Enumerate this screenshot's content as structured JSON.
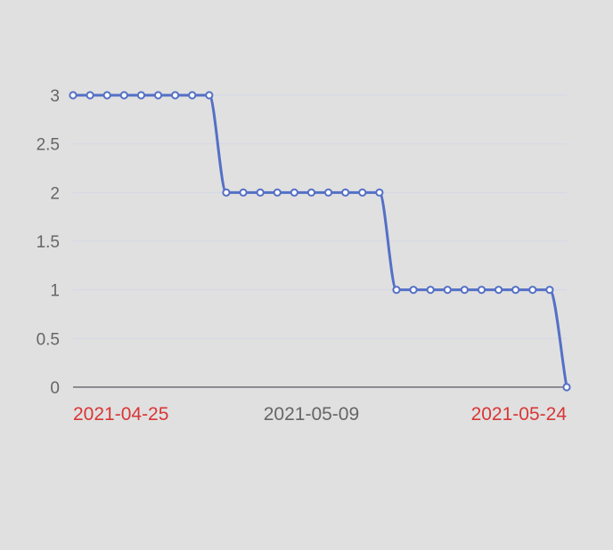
{
  "colors": {
    "background": "#e0e0e0",
    "series_line": "#5470c6",
    "marker_fill": "#ffffff",
    "grid": "#d4d7e6",
    "axis": "#6e7079",
    "ytick_text": "#666666",
    "xtick_text_default": "#666666",
    "xtick_text_highlight": "#d93636"
  },
  "chart_data": {
    "type": "line",
    "smooth": true,
    "title": "",
    "xlabel": "",
    "ylabel": "",
    "ylim": [
      0,
      3
    ],
    "yticks": [
      0,
      0.5,
      1,
      1.5,
      2,
      2.5,
      3
    ],
    "ytick_labels": [
      "0",
      "0.5",
      "1",
      "1.5",
      "2",
      "2.5",
      "3"
    ],
    "grid": "horizontal",
    "legend": "none",
    "xlim": [
      "2021-04-25",
      "2021-05-24"
    ],
    "xtick_labels": [
      {
        "date": "2021-04-25",
        "label": "2021-04-25",
        "highlight": true
      },
      {
        "date": "2021-05-09",
        "label": "2021-05-09",
        "highlight": false
      },
      {
        "date": "2021-05-24",
        "label": "2021-05-24",
        "highlight": true
      }
    ],
    "series": [
      {
        "points": [
          [
            "2021-04-25",
            3
          ],
          [
            "2021-04-26",
            3
          ],
          [
            "2021-04-27",
            3
          ],
          [
            "2021-04-28",
            3
          ],
          [
            "2021-04-29",
            3
          ],
          [
            "2021-04-30",
            3
          ],
          [
            "2021-05-01",
            3
          ],
          [
            "2021-05-02",
            3
          ],
          [
            "2021-05-03",
            3
          ],
          [
            "2021-05-04",
            2
          ],
          [
            "2021-05-05",
            2
          ],
          [
            "2021-05-06",
            2
          ],
          [
            "2021-05-07",
            2
          ],
          [
            "2021-05-08",
            2
          ],
          [
            "2021-05-09",
            2
          ],
          [
            "2021-05-10",
            2
          ],
          [
            "2021-05-11",
            2
          ],
          [
            "2021-05-12",
            2
          ],
          [
            "2021-05-13",
            2
          ],
          [
            "2021-05-14",
            1
          ],
          [
            "2021-05-15",
            1
          ],
          [
            "2021-05-16",
            1
          ],
          [
            "2021-05-17",
            1
          ],
          [
            "2021-05-18",
            1
          ],
          [
            "2021-05-19",
            1
          ],
          [
            "2021-05-20",
            1
          ],
          [
            "2021-05-21",
            1
          ],
          [
            "2021-05-22",
            1
          ],
          [
            "2021-05-23",
            1
          ],
          [
            "2021-05-24",
            0
          ]
        ]
      }
    ]
  }
}
